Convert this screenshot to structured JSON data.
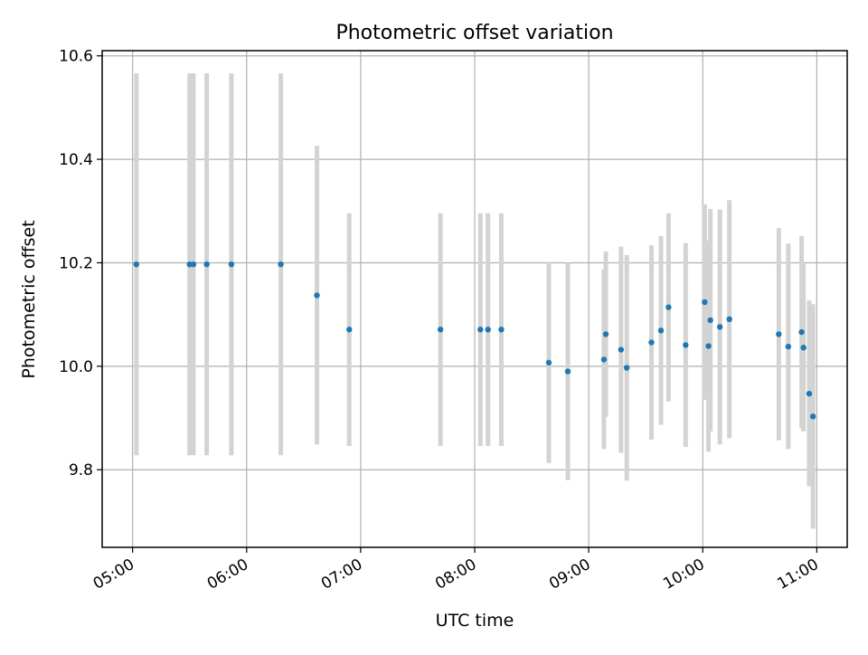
{
  "chart_data": {
    "type": "scatter",
    "title": "Photometric offset variation",
    "xlabel": "UTC time",
    "ylabel": "Photometric offset",
    "xlim": [
      "04:44",
      "11:16"
    ],
    "ylim": [
      9.65,
      10.61
    ],
    "xticks": [
      "05:00",
      "06:00",
      "07:00",
      "08:00",
      "09:00",
      "10:00",
      "11:00"
    ],
    "yticks": [
      9.8,
      10.0,
      10.2,
      10.4,
      10.6
    ],
    "grid": true,
    "legend": "none",
    "colors": {
      "point": "#1f77b4",
      "errorbar": "#d3d3d3",
      "grid": "#b0b0b0"
    },
    "points": [
      {
        "t": "05:02",
        "y": 10.197,
        "lo": 9.828,
        "hi": 10.566
      },
      {
        "t": "05:30",
        "y": 10.197,
        "lo": 9.828,
        "hi": 10.566
      },
      {
        "t": "05:32",
        "y": 10.197,
        "lo": 9.828,
        "hi": 10.566
      },
      {
        "t": "05:39",
        "y": 10.197,
        "lo": 9.828,
        "hi": 10.566
      },
      {
        "t": "05:52",
        "y": 10.197,
        "lo": 9.828,
        "hi": 10.566
      },
      {
        "t": "06:18",
        "y": 10.197,
        "lo": 9.828,
        "hi": 10.566
      },
      {
        "t": "06:37",
        "y": 10.137,
        "lo": 9.849,
        "hi": 10.426
      },
      {
        "t": "06:54",
        "y": 10.071,
        "lo": 9.846,
        "hi": 10.296
      },
      {
        "t": "07:42",
        "y": 10.071,
        "lo": 9.846,
        "hi": 10.296
      },
      {
        "t": "08:03",
        "y": 10.071,
        "lo": 9.846,
        "hi": 10.296
      },
      {
        "t": "08:07",
        "y": 10.071,
        "lo": 9.846,
        "hi": 10.296
      },
      {
        "t": "08:14",
        "y": 10.071,
        "lo": 9.846,
        "hi": 10.296
      },
      {
        "t": "08:39",
        "y": 10.007,
        "lo": 9.813,
        "hi": 10.202
      },
      {
        "t": "08:49",
        "y": 9.99,
        "lo": 9.78,
        "hi": 10.2
      },
      {
        "t": "09:08",
        "y": 10.013,
        "lo": 9.84,
        "hi": 10.187
      },
      {
        "t": "09:09",
        "y": 10.062,
        "lo": 9.902,
        "hi": 10.222
      },
      {
        "t": "09:17",
        "y": 10.032,
        "lo": 9.833,
        "hi": 10.231
      },
      {
        "t": "09:20",
        "y": 9.997,
        "lo": 9.779,
        "hi": 10.215
      },
      {
        "t": "09:33",
        "y": 10.046,
        "lo": 9.858,
        "hi": 10.234
      },
      {
        "t": "09:38",
        "y": 10.069,
        "lo": 9.887,
        "hi": 10.252
      },
      {
        "t": "09:42",
        "y": 10.114,
        "lo": 9.932,
        "hi": 10.296
      },
      {
        "t": "09:51",
        "y": 10.041,
        "lo": 9.844,
        "hi": 10.238
      },
      {
        "t": "10:01",
        "y": 10.124,
        "lo": 9.935,
        "hi": 10.313
      },
      {
        "t": "10:03",
        "y": 10.039,
        "lo": 9.835,
        "hi": 10.243
      },
      {
        "t": "10:04",
        "y": 10.089,
        "lo": 9.874,
        "hi": 10.304
      },
      {
        "t": "10:09",
        "y": 10.076,
        "lo": 9.849,
        "hi": 10.303
      },
      {
        "t": "10:14",
        "y": 10.091,
        "lo": 9.861,
        "hi": 10.321
      },
      {
        "t": "10:40",
        "y": 10.062,
        "lo": 9.857,
        "hi": 10.267
      },
      {
        "t": "10:45",
        "y": 10.038,
        "lo": 9.84,
        "hi": 10.237
      },
      {
        "t": "10:52",
        "y": 10.066,
        "lo": 9.88,
        "hi": 10.252
      },
      {
        "t": "10:53",
        "y": 10.036,
        "lo": 9.874,
        "hi": 10.198
      },
      {
        "t": "10:56",
        "y": 9.947,
        "lo": 9.768,
        "hi": 10.127
      },
      {
        "t": "10:58",
        "y": 9.903,
        "lo": 9.686,
        "hi": 10.12
      }
    ]
  }
}
